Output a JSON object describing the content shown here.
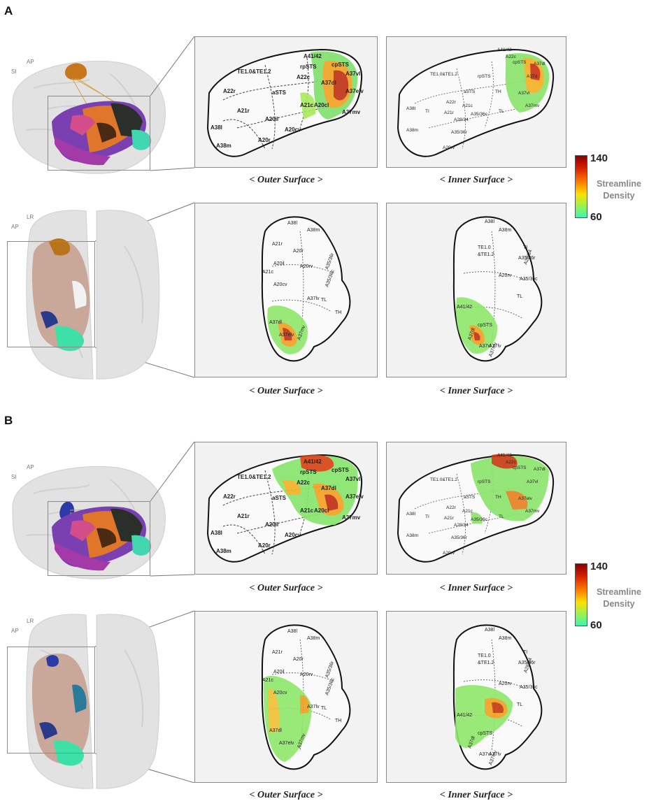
{
  "panels": [
    {
      "letter": "A",
      "sagittal_axes": {
        "top": "AP",
        "side": "SI"
      },
      "axial_axes": {
        "top": "LR",
        "side": "AP"
      },
      "captions": {
        "row1_outer": "< Outer Surface >",
        "row1_inner": "< Inner Surface >",
        "row2_outer": "< Outer Surface >",
        "row2_inner": "< Inner Surface >"
      },
      "sagittal_outer_labels": [
        "TE1.0&TE1.2",
        "A41/42",
        "rpSTS",
        "cpSTS",
        "A22c",
        "A37vl",
        "A37dl",
        "A22r",
        "aSTS",
        "A21c",
        "A20cl",
        "A37elv",
        "A37mv",
        "A21r",
        "A20il",
        "A38l",
        "A20cv",
        "A20r",
        "A38m"
      ],
      "sagittal_inner_labels": [
        "A41/42",
        "A22c",
        "cpSTS",
        "A37dl",
        "TE1.0&TE1.2",
        "rpSTS",
        "A37d",
        "aSTS",
        "TH",
        "A37vl",
        "A22r",
        "A37mv",
        "A38l",
        "TI",
        "A21c",
        "A21r",
        "TL",
        "A28/34",
        "A35/36c",
        "A38m",
        "A35/36r",
        "A20rv"
      ],
      "axial_outer_labels": [
        "A38l",
        "A38m",
        "A21r",
        "A20r",
        "A20il",
        "A20rv",
        "A35/36r",
        "A20cv",
        "A21c",
        "A35/36c",
        "A37lv",
        "TL",
        "TH",
        "A37dl",
        "A37elv",
        "A37mv"
      ],
      "axial_inner_labels": [
        "A38l",
        "A38m",
        "TE1.0",
        "&TE1.2",
        "TI",
        "A35/36r",
        "A28/34",
        "A20rv",
        "A35/36c",
        "A41/42",
        "TL",
        "cpSTS",
        "A37dl",
        "A37vl",
        "A37lv",
        "A37mv"
      ]
    },
    {
      "letter": "B",
      "sagittal_axes": {
        "top": "AP",
        "side": "SI"
      },
      "axial_axes": {
        "top": "LR",
        "side": "AP"
      },
      "captions": {
        "row1_outer": "< Outer Surface >",
        "row1_inner": "< Inner Surface >",
        "row2_outer": "< Outer Surface >",
        "row2_inner": "< Inner Surface >"
      },
      "sagittal_outer_labels": [
        "TE1.0&TE1.2",
        "A41/42",
        "rpSTS",
        "cpSTS",
        "A22c",
        "A37vl",
        "A37dl",
        "A22r",
        "aSTS",
        "A21c",
        "A20cl",
        "A37elv",
        "A37mv",
        "A21r",
        "A20il",
        "A38l",
        "A20cv",
        "A20r",
        "A38m"
      ],
      "sagittal_inner_labels": [
        "A41/42",
        "A22c",
        "cpSTS",
        "A37dl",
        "TE1.0&TE1.2",
        "rpSTS",
        "A37vl",
        "aSTS",
        "TH",
        "A37elv",
        "A22r",
        "A37mv",
        "A38l",
        "TI",
        "A21c",
        "A21r",
        "TL",
        "A28/34",
        "A35/36c",
        "A38m",
        "A35/36r",
        "A20rv"
      ],
      "axial_outer_labels": [
        "A38l",
        "A38m",
        "A21r",
        "A20r",
        "A20il",
        "A20rv",
        "A35/36r",
        "A20cv",
        "A21c",
        "A35/36c",
        "A37lv",
        "TL",
        "TH",
        "A37dl",
        "A37elv",
        "A37mv"
      ],
      "axial_inner_labels": [
        "A38l",
        "A38m",
        "TE1.0",
        "&TE1.2",
        "TI",
        "A35/36r",
        "A28/34",
        "A20rv",
        "A35/36c",
        "A41/42",
        "TL",
        "cpSTS",
        "A37dl",
        "A37vl",
        "A37lv",
        "A37mv"
      ]
    }
  ],
  "colorbar": {
    "max": "140",
    "min": "60",
    "title_line1": "Streamline",
    "title_line2": "Density",
    "colors": [
      "#8b0000",
      "#d62000",
      "#ff7a00",
      "#ffe000",
      "#9ef24a",
      "#3df5b0"
    ]
  }
}
